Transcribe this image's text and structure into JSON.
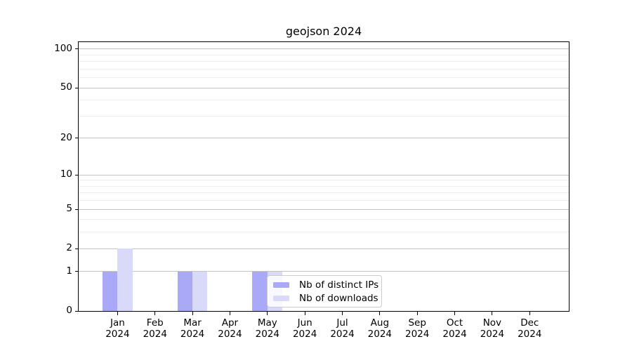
{
  "title": "geojson 2024",
  "chart_data": {
    "type": "bar",
    "title": "geojson 2024",
    "categories": [
      "Jan 2024",
      "Feb 2024",
      "Mar 2024",
      "Apr 2024",
      "May 2024",
      "Jun 2024",
      "Jul 2024",
      "Aug 2024",
      "Sep 2024",
      "Oct 2024",
      "Nov 2024",
      "Dec 2024"
    ],
    "x_tick_months": [
      "Jan",
      "Feb",
      "Mar",
      "Apr",
      "May",
      "Jun",
      "Jul",
      "Aug",
      "Sep",
      "Oct",
      "Nov",
      "Dec"
    ],
    "x_tick_year": "2024",
    "series": [
      {
        "name": "Nb of distinct IPs",
        "color": "#a9a9f8",
        "values": [
          1,
          0,
          1,
          0,
          1,
          0,
          0,
          0,
          0,
          0,
          0,
          0
        ]
      },
      {
        "name": "Nb of downloads",
        "color": "#d9d9fa",
        "values": [
          2,
          0,
          1,
          0,
          1,
          0,
          0,
          0,
          0,
          0,
          0,
          0
        ]
      }
    ],
    "y_scale": "log1p",
    "y_major_ticks": [
      0,
      1,
      2,
      5,
      10,
      20,
      50,
      100
    ],
    "y_minor_ticks": [
      3,
      4,
      6,
      7,
      8,
      9,
      30,
      40,
      60,
      70,
      80,
      90
    ],
    "ylim": [
      0,
      113
    ],
    "grid": true,
    "legend": {
      "position": "lower center",
      "entries": [
        "Nb of distinct IPs",
        "Nb of downloads"
      ]
    }
  },
  "colors": {
    "bar_dark": "#a9a9f8",
    "bar_light": "#d9d9fa",
    "grid_major": "#c3c3c3",
    "grid_minor": "#ebebeb",
    "spine": "#000000",
    "tick": "#000000",
    "text": "#000000",
    "legend_border": "#cccccc",
    "background": "#ffffff"
  }
}
